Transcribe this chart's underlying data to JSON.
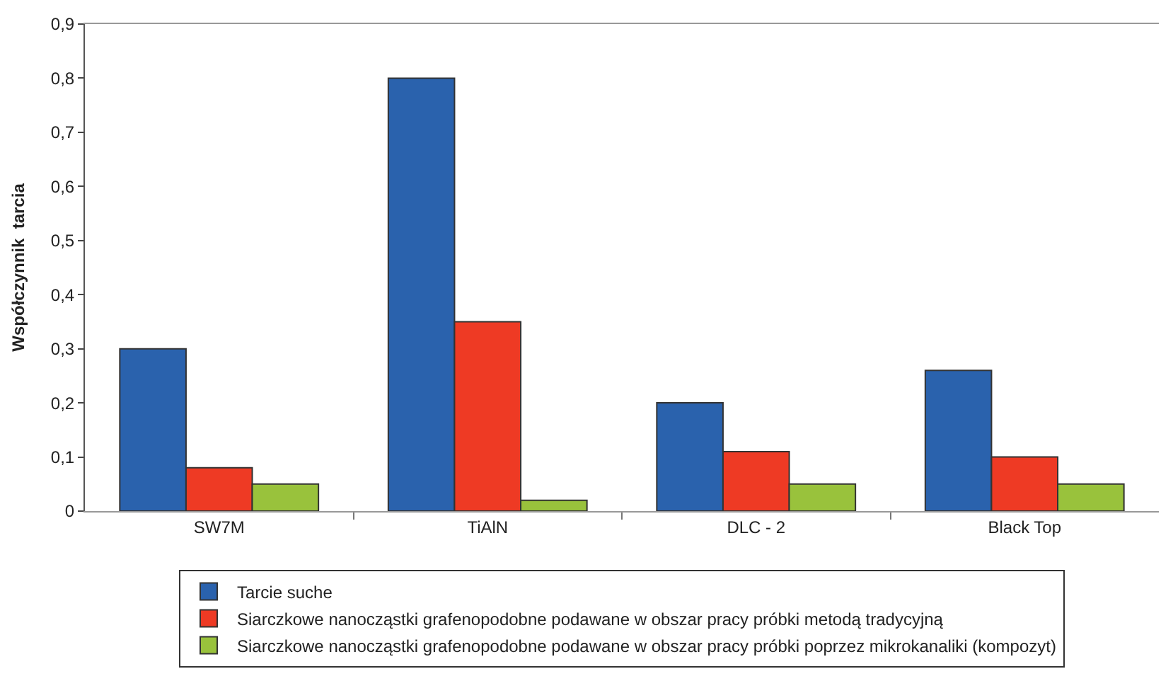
{
  "chart_data": {
    "type": "bar",
    "ylabel": "Współczynnik  tarcia",
    "categories": [
      "SW7M",
      "TiAlN",
      "DLC - 2",
      "Black Top"
    ],
    "series": [
      {
        "name": "Tarcie suche",
        "color": "#2a62ad",
        "values": [
          0.3,
          0.8,
          0.2,
          0.26
        ]
      },
      {
        "name": "Siarczkowe nanocząstki grafenopodobne podawane w obszar pracy próbki metodą tradycyjną",
        "color": "#ee3a24",
        "values": [
          0.08,
          0.35,
          0.11,
          0.1
        ]
      },
      {
        "name": "Siarczkowe nanocząstki grafenopodobne podawane w obszar pracy próbki poprzez mikrokanaliki (kompozyt)",
        "color": "#99c23c",
        "values": [
          0.05,
          0.02,
          0.05,
          0.05
        ]
      }
    ],
    "ylim": [
      0,
      0.9
    ],
    "yticks": [
      {
        "value": 0,
        "label": "0"
      },
      {
        "value": 0.1,
        "label": "0,1"
      },
      {
        "value": 0.2,
        "label": "0,2"
      },
      {
        "value": 0.3,
        "label": "0,3"
      },
      {
        "value": 0.4,
        "label": "0,4"
      },
      {
        "value": 0.5,
        "label": "0,5"
      },
      {
        "value": 0.6,
        "label": "0,6"
      },
      {
        "value": 0.7,
        "label": "0,7"
      },
      {
        "value": 0.8,
        "label": "0,8"
      },
      {
        "value": 0.9,
        "label": "0,9"
      }
    ],
    "legend": "bottom"
  }
}
